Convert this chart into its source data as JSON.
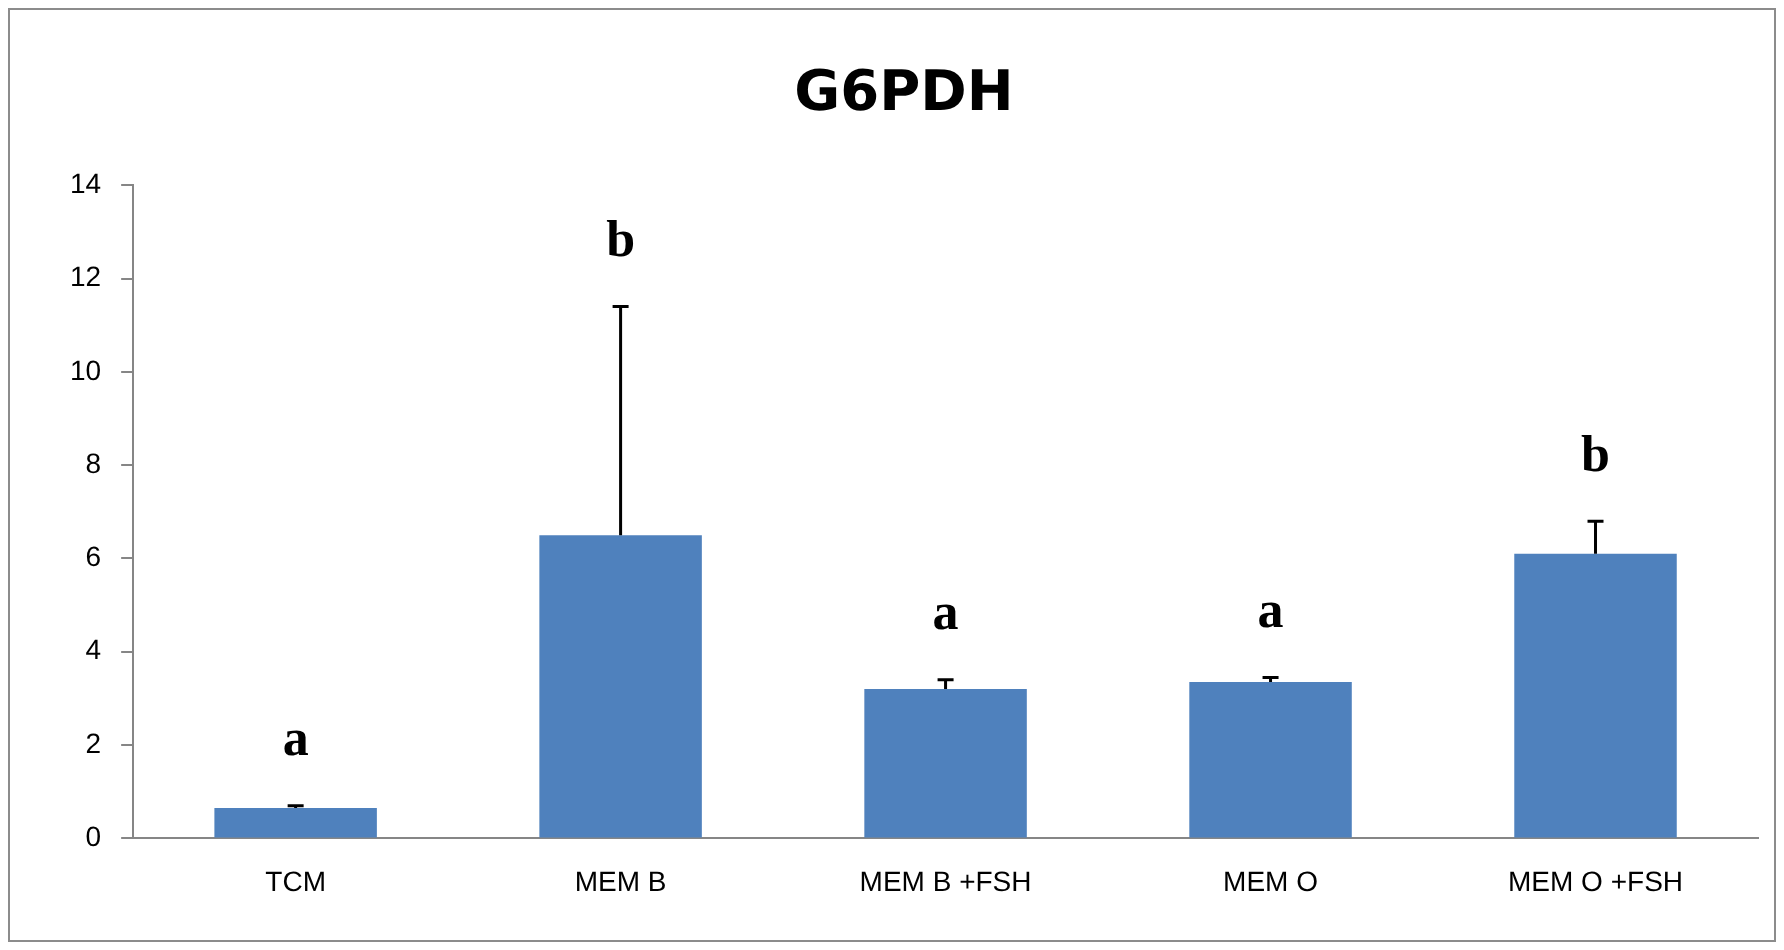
{
  "chart_data": {
    "type": "bar",
    "title": "G6PDH",
    "categories": [
      "TCM",
      "MEM B",
      "MEM B +FSH",
      "MEM O",
      "MEM O +FSH"
    ],
    "values": [
      0.65,
      6.5,
      3.2,
      3.35,
      6.1
    ],
    "errors": [
      0.05,
      4.9,
      0.2,
      0.1,
      0.7
    ],
    "color": "#4f81bd",
    "ylim": [
      0,
      14
    ],
    "yticks": [
      0,
      2,
      4,
      6,
      8,
      10,
      12,
      14
    ],
    "grid": false,
    "annotations": [
      "a",
      "b",
      "a",
      "a",
      "b"
    ]
  }
}
